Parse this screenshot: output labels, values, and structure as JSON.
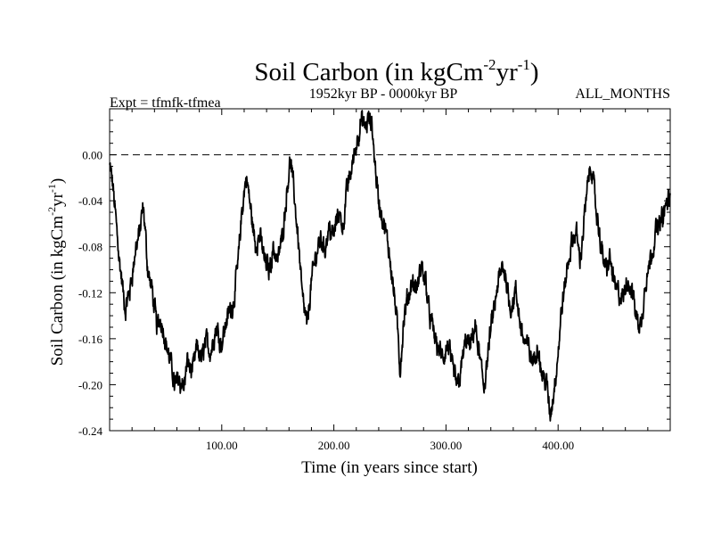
{
  "chart_data": {
    "type": "line",
    "title_main": "Soil Carbon (in kgCm",
    "title_sup1": "-2",
    "title_mid": "yr",
    "title_sup2": "-1",
    "title_end": ")",
    "subtitle_left": "Expt = tfmfk-tfmea",
    "subtitle_center": "1952kyr BP - 0000kyr BP",
    "subtitle_right": "ALL_MONTHS",
    "xlabel": "Time (in years since start)",
    "ylabel_main": "Soil Carbon (in kgCm",
    "ylabel_sup1": "-2",
    "ylabel_mid": "yr",
    "ylabel_sup2": "-1",
    "ylabel_end": ")",
    "xlim": [
      0,
      500
    ],
    "ylim": [
      -0.24,
      0.04
    ],
    "x_ticks": [
      {
        "value": 100,
        "label": "100.00"
      },
      {
        "value": 200,
        "label": "200.00"
      },
      {
        "value": 300,
        "label": "300.00"
      },
      {
        "value": 400,
        "label": "400.00"
      }
    ],
    "y_ticks": [
      {
        "value": 0.0,
        "label": "0.00"
      },
      {
        "value": -0.04,
        "label": "-0.04"
      },
      {
        "value": -0.08,
        "label": "-0.08"
      },
      {
        "value": -0.12,
        "label": "-0.12"
      },
      {
        "value": -0.16,
        "label": "-0.16"
      },
      {
        "value": -0.2,
        "label": "-0.20"
      },
      {
        "value": -0.24,
        "label": "-0.24"
      }
    ],
    "reference_line": {
      "value": 0.0,
      "style": "dashed"
    },
    "series": [
      {
        "name": "Soil Carbon",
        "color": "#000000",
        "key_points": [
          [
            0,
            -0.01
          ],
          [
            3,
            -0.03
          ],
          [
            6,
            -0.06
          ],
          [
            10,
            -0.1
          ],
          [
            14,
            -0.14
          ],
          [
            18,
            -0.12
          ],
          [
            22,
            -0.09
          ],
          [
            26,
            -0.07
          ],
          [
            30,
            -0.05
          ],
          [
            34,
            -0.1
          ],
          [
            38,
            -0.12
          ],
          [
            42,
            -0.15
          ],
          [
            46,
            -0.14
          ],
          [
            50,
            -0.16
          ],
          [
            54,
            -0.18
          ],
          [
            58,
            -0.2
          ],
          [
            62,
            -0.19
          ],
          [
            66,
            -0.2
          ],
          [
            70,
            -0.18
          ],
          [
            74,
            -0.19
          ],
          [
            78,
            -0.17
          ],
          [
            82,
            -0.18
          ],
          [
            86,
            -0.16
          ],
          [
            90,
            -0.17
          ],
          [
            95,
            -0.15
          ],
          [
            100,
            -0.16
          ],
          [
            105,
            -0.14
          ],
          [
            110,
            -0.13
          ],
          [
            114,
            -0.1
          ],
          [
            118,
            -0.05
          ],
          [
            122,
            -0.02
          ],
          [
            126,
            -0.05
          ],
          [
            130,
            -0.08
          ],
          [
            134,
            -0.07
          ],
          [
            138,
            -0.09
          ],
          [
            142,
            -0.1
          ],
          [
            146,
            -0.08
          ],
          [
            150,
            -0.09
          ],
          [
            154,
            -0.07
          ],
          [
            158,
            -0.03
          ],
          [
            161,
            0.0
          ],
          [
            164,
            -0.03
          ],
          [
            168,
            -0.07
          ],
          [
            172,
            -0.12
          ],
          [
            176,
            -0.15
          ],
          [
            180,
            -0.11
          ],
          [
            184,
            -0.09
          ],
          [
            188,
            -0.07
          ],
          [
            192,
            -0.08
          ],
          [
            196,
            -0.06
          ],
          [
            200,
            -0.07
          ],
          [
            204,
            -0.05
          ],
          [
            208,
            -0.06
          ],
          [
            212,
            -0.03
          ],
          [
            216,
            -0.01
          ],
          [
            220,
            0.01
          ],
          [
            224,
            0.03
          ],
          [
            228,
            0.02
          ],
          [
            231,
            0.03
          ],
          [
            234,
            0.02
          ],
          [
            237,
            -0.01
          ],
          [
            240,
            -0.04
          ],
          [
            244,
            -0.06
          ],
          [
            248,
            -0.08
          ],
          [
            252,
            -0.1
          ],
          [
            256,
            -0.14
          ],
          [
            259,
            -0.19
          ],
          [
            262,
            -0.15
          ],
          [
            266,
            -0.13
          ],
          [
            270,
            -0.11
          ],
          [
            274,
            -0.12
          ],
          [
            278,
            -0.1
          ],
          [
            282,
            -0.11
          ],
          [
            286,
            -0.14
          ],
          [
            290,
            -0.16
          ],
          [
            294,
            -0.17
          ],
          [
            298,
            -0.18
          ],
          [
            302,
            -0.17
          ],
          [
            306,
            -0.19
          ],
          [
            310,
            -0.2
          ],
          [
            314,
            -0.18
          ],
          [
            318,
            -0.16
          ],
          [
            322,
            -0.17
          ],
          [
            326,
            -0.15
          ],
          [
            330,
            -0.18
          ],
          [
            334,
            -0.2
          ],
          [
            338,
            -0.17
          ],
          [
            342,
            -0.14
          ],
          [
            346,
            -0.12
          ],
          [
            350,
            -0.1
          ],
          [
            354,
            -0.11
          ],
          [
            358,
            -0.13
          ],
          [
            362,
            -0.12
          ],
          [
            366,
            -0.15
          ],
          [
            370,
            -0.16
          ],
          [
            374,
            -0.17
          ],
          [
            378,
            -0.18
          ],
          [
            382,
            -0.17
          ],
          [
            386,
            -0.19
          ],
          [
            390,
            -0.2
          ],
          [
            393,
            -0.23
          ],
          [
            396,
            -0.21
          ],
          [
            400,
            -0.17
          ],
          [
            404,
            -0.13
          ],
          [
            408,
            -0.1
          ],
          [
            412,
            -0.08
          ],
          [
            416,
            -0.07
          ],
          [
            420,
            -0.09
          ],
          [
            424,
            -0.05
          ],
          [
            427,
            -0.02
          ],
          [
            430,
            -0.01
          ],
          [
            434,
            -0.05
          ],
          [
            438,
            -0.08
          ],
          [
            442,
            -0.1
          ],
          [
            446,
            -0.09
          ],
          [
            450,
            -0.11
          ],
          [
            454,
            -0.12
          ],
          [
            458,
            -0.13
          ],
          [
            462,
            -0.11
          ],
          [
            466,
            -0.12
          ],
          [
            470,
            -0.14
          ],
          [
            474,
            -0.15
          ],
          [
            478,
            -0.11
          ],
          [
            482,
            -0.09
          ],
          [
            486,
            -0.07
          ],
          [
            490,
            -0.06
          ],
          [
            494,
            -0.05
          ],
          [
            498,
            -0.04
          ],
          [
            500,
            -0.04
          ]
        ]
      }
    ]
  }
}
